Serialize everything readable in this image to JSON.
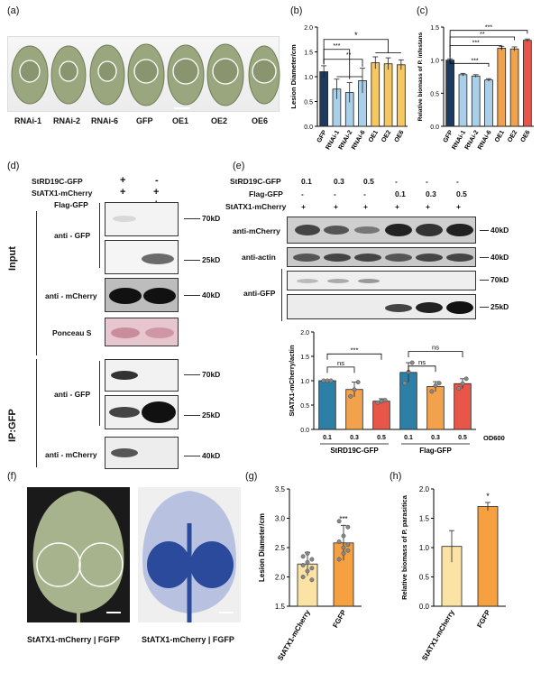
{
  "panels": {
    "a": "(a)",
    "b": "(b)",
    "c": "(c)",
    "d": "(d)",
    "e": "(e)",
    "f": "(f)",
    "g": "(g)",
    "h": "(h)"
  },
  "panel_a": {
    "labels": [
      "RNAi-1",
      "RNAi-2",
      "RNAi-6",
      "GFP",
      "OE1",
      "OE2",
      "OE6"
    ]
  },
  "panel_d": {
    "rows": [
      {
        "name": "StRD19C-GFP",
        "marks": [
          "+",
          "-"
        ]
      },
      {
        "name": "StATX1-mCherry",
        "marks": [
          "+",
          "+"
        ]
      },
      {
        "name": "Flag-GFP",
        "marks": [
          "-",
          "+"
        ]
      }
    ],
    "input": "Input",
    "ip": "IP:GFP",
    "antibodies": {
      "gfp": "anti - GFP",
      "mcherry": "anti - mCherry",
      "ponceau": "Ponceau S"
    },
    "sizes": {
      "k70": "70kD",
      "k25": "25kD",
      "k40": "40kD"
    }
  },
  "panel_e": {
    "rows": [
      {
        "name": "StRD19C-GFP",
        "marks": [
          "0.1",
          "0.3",
          "0.5",
          "-",
          "-",
          "-"
        ]
      },
      {
        "name": "Flag-GFP",
        "marks": [
          "-",
          "-",
          "-",
          "0.1",
          "0.3",
          "0.5"
        ]
      },
      {
        "name": "StATX1-mCherry",
        "marks": [
          "+",
          "+",
          "+",
          "+",
          "+",
          "+"
        ]
      }
    ],
    "antibodies": {
      "mcherry": "anti-mCherry",
      "actin": "anti-actin",
      "gfp": "anti-GFP"
    },
    "sizes": {
      "k40a": "40kD",
      "k40b": "40kD",
      "k70": "70kD",
      "k25": "25kD"
    }
  },
  "panel_f": {
    "caption1": "StATX1-mCherry | FGFP",
    "caption2": "StATX1-mCherry | FGFP"
  },
  "colors": {
    "navy": "#1f3a5f",
    "lightblue": "#a9d0e8",
    "teal": "#2e7fa6",
    "orange": "#f2a14c",
    "red": "#e8564a",
    "yellow": "#f6c85f",
    "cream": "#fbe3a6",
    "deep_orange": "#f5a142"
  },
  "chart_data": [
    {
      "id": "b",
      "type": "bar",
      "categories": [
        "GFP",
        "RNAi-1",
        "RNAi-2",
        "RNAi-6",
        "OE1",
        "OE2",
        "OE6"
      ],
      "values": [
        1.1,
        0.75,
        0.68,
        0.92,
        1.28,
        1.26,
        1.24
      ],
      "errors": [
        0.12,
        0.2,
        0.2,
        0.25,
        0.12,
        0.12,
        0.1
      ],
      "ylabel": "Lesion Diameter/cm",
      "ylim": [
        0,
        2.0
      ],
      "yticks": [
        0.0,
        0.5,
        1.0,
        1.5,
        2.0
      ],
      "significance": [
        "*",
        "***",
        "**"
      ]
    },
    {
      "id": "c",
      "type": "bar",
      "categories": [
        "GFP",
        "RNAi-1",
        "RNAi-2",
        "RNAi-6",
        "OE1",
        "OE2",
        "OE6"
      ],
      "values": [
        1.0,
        0.78,
        0.76,
        0.7,
        1.18,
        1.17,
        1.3
      ],
      "errors": [
        0.02,
        0.02,
        0.02,
        0.02,
        0.03,
        0.03,
        0.02
      ],
      "ylabel": "Relative biomass of P. infestans",
      "ylim": [
        0,
        1.5
      ],
      "yticks": [
        0.0,
        0.5,
        1.0,
        1.5
      ],
      "significance": [
        "***",
        "**",
        "***",
        "***"
      ]
    },
    {
      "id": "e",
      "type": "bar",
      "categories": [
        "0.1",
        "0.3",
        "0.5",
        "0.1",
        "0.3",
        "0.5"
      ],
      "groups": [
        "StRD19C-GFP",
        "Flag-GFP"
      ],
      "values": [
        1.0,
        0.82,
        0.58,
        1.17,
        0.88,
        0.94
      ],
      "errors": [
        0.0,
        0.15,
        0.05,
        0.2,
        0.1,
        0.1
      ],
      "ylabel": "StATX1-mCherry/actin",
      "xlabel": "OD600",
      "ylim": [
        0,
        2.0
      ],
      "yticks": [
        0.0,
        0.5,
        1.0,
        1.5,
        2.0
      ],
      "significance": [
        "ns",
        "***",
        "ns",
        "ns"
      ]
    },
    {
      "id": "g",
      "type": "bar",
      "categories": [
        "StATX1-mCherry",
        "FGFP"
      ],
      "values": [
        2.22,
        2.58
      ],
      "errors": [
        0.2,
        0.3
      ],
      "ylabel": "Lesion Diameter/cm",
      "ylim": [
        1.5,
        3.5
      ],
      "yticks": [
        1.5,
        2.0,
        2.5,
        3.0,
        3.5
      ],
      "significance": [
        "***"
      ]
    },
    {
      "id": "h",
      "type": "bar",
      "categories": [
        "StATX1-mCherry",
        "FGFP"
      ],
      "values": [
        1.02,
        1.7
      ],
      "errors": [
        0.27,
        0.07
      ],
      "ylabel": "Relative biomass of P. parasitica",
      "ylim": [
        0,
        2.0
      ],
      "yticks": [
        0.0,
        0.5,
        1.0,
        1.5,
        2.0
      ],
      "significance": [
        "*"
      ]
    }
  ]
}
